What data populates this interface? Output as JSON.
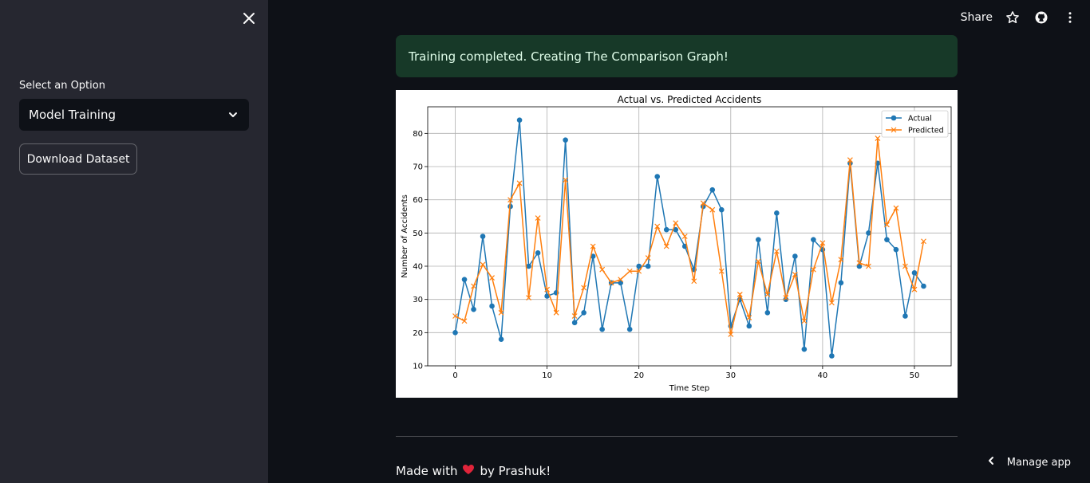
{
  "sidebar": {
    "select_label": "Select an Option",
    "select_value": "Model Training",
    "download_label": "Download Dataset"
  },
  "topbar": {
    "share_label": "Share"
  },
  "alert": {
    "text": "Training completed. Creating The Comparison Graph!"
  },
  "footer": {
    "prefix": "Made with",
    "suffix": "by Prashuk!"
  },
  "manage": {
    "label": "Manage app"
  },
  "colors": {
    "actual": "#1f77b4",
    "predicted": "#ff7f0e",
    "alert_bg": "#173928",
    "sidebar_bg": "#262730",
    "page_bg": "#0e1117"
  },
  "chart_data": {
    "type": "line",
    "title": "Actual vs. Predicted Accidents",
    "xlabel": "Time Step",
    "ylabel": "Number of Accidents",
    "xlim": [
      -3,
      54
    ],
    "ylim": [
      10,
      88
    ],
    "xticks": [
      0,
      10,
      20,
      30,
      40,
      50
    ],
    "yticks": [
      10,
      20,
      30,
      40,
      50,
      60,
      70,
      80
    ],
    "grid": true,
    "legend": "top-right",
    "x": [
      0,
      1,
      2,
      3,
      4,
      5,
      6,
      7,
      8,
      9,
      10,
      11,
      12,
      13,
      14,
      15,
      16,
      17,
      18,
      19,
      20,
      21,
      22,
      23,
      24,
      25,
      26,
      27,
      28,
      29,
      30,
      31,
      32,
      33,
      34,
      35,
      36,
      37,
      38,
      39,
      40,
      41,
      42,
      43,
      44,
      45,
      46,
      47,
      48,
      49,
      50,
      51
    ],
    "series": [
      {
        "name": "Actual",
        "marker": "o",
        "values": [
          20,
          36,
          27,
          49,
          28,
          18,
          58,
          84,
          40,
          44,
          31,
          32,
          78,
          23,
          26,
          43,
          21,
          35,
          35,
          21,
          40,
          40,
          67,
          51,
          51,
          46,
          39,
          58,
          63,
          57,
          22,
          30,
          22,
          48,
          26,
          56,
          30,
          43,
          15,
          48,
          45,
          13,
          35,
          71,
          40,
          50,
          71,
          48,
          45,
          25,
          38,
          34
        ]
      },
      {
        "name": "Predicted",
        "marker": "x",
        "values": [
          25,
          23.5,
          34,
          40.5,
          36.5,
          26,
          60,
          65,
          30.5,
          54.5,
          33,
          26,
          66,
          25,
          33.5,
          46,
          39,
          35,
          36,
          38.5,
          38.5,
          42.5,
          52,
          46,
          53,
          49,
          35.5,
          59,
          57,
          38.5,
          19.5,
          31.5,
          24.5,
          41.5,
          31.5,
          44.5,
          30.5,
          37.5,
          23.5,
          39,
          47,
          29,
          42,
          72,
          41,
          40,
          78.5,
          52.5,
          57.5,
          40,
          33,
          47.5
        ]
      }
    ]
  }
}
